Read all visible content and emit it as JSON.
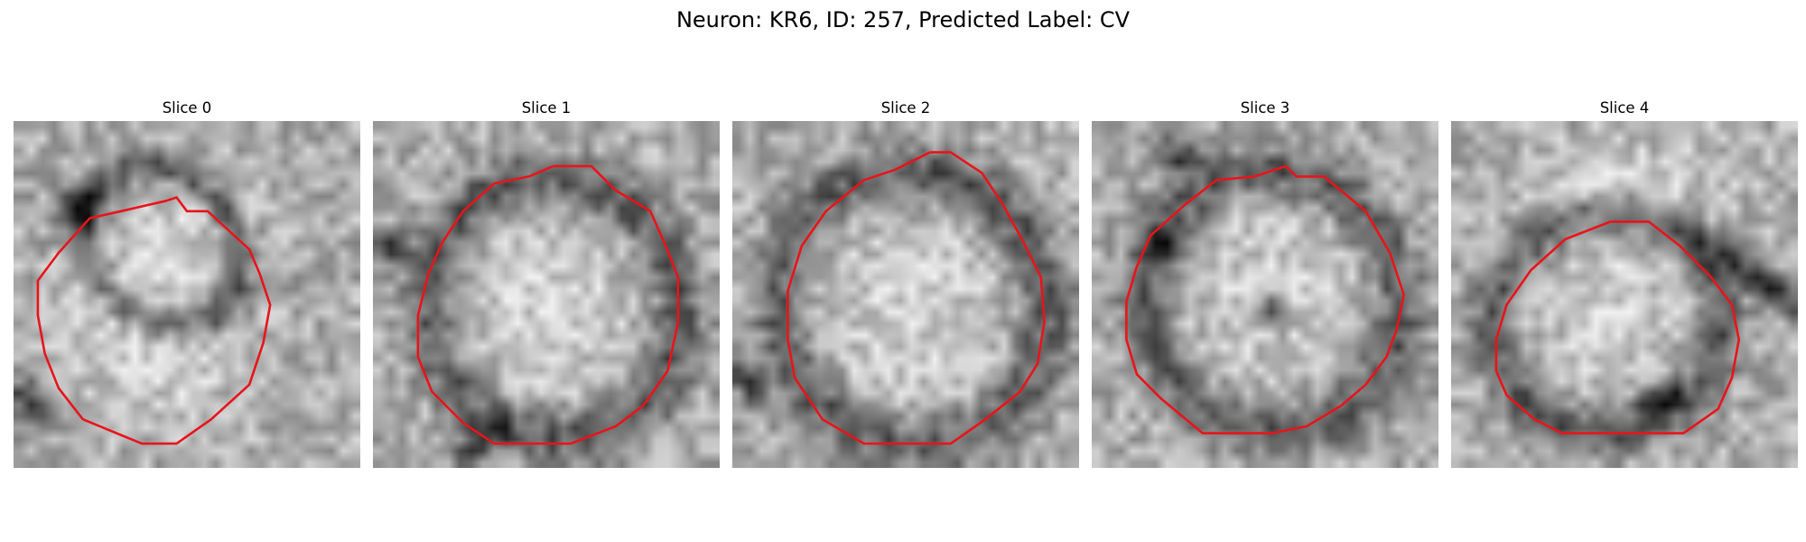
{
  "figure": {
    "title": "Neuron: KR6, ID: 257, Predicted Label: CV"
  },
  "colors": {
    "contour": "#e8141a",
    "background": "#ffffff",
    "text": "#000000"
  },
  "panels": [
    {
      "title": "Slice 0",
      "seed": 11,
      "contour": [
        [
          0.44,
          0.23
        ],
        [
          0.47,
          0.22
        ],
        [
          0.5,
          0.26
        ],
        [
          0.56,
          0.26
        ],
        [
          0.68,
          0.37
        ],
        [
          0.71,
          0.44
        ],
        [
          0.74,
          0.53
        ],
        [
          0.72,
          0.64
        ],
        [
          0.68,
          0.76
        ],
        [
          0.57,
          0.86
        ],
        [
          0.47,
          0.93
        ],
        [
          0.37,
          0.93
        ],
        [
          0.2,
          0.86
        ],
        [
          0.13,
          0.77
        ],
        [
          0.09,
          0.67
        ],
        [
          0.07,
          0.56
        ],
        [
          0.07,
          0.46
        ],
        [
          0.13,
          0.38
        ],
        [
          0.22,
          0.28
        ],
        [
          0.31,
          0.26
        ],
        [
          0.44,
          0.23
        ]
      ],
      "features": {
        "ring": [
          0.43,
          0.36,
          0.2,
          0.25,
          -40
        ],
        "blobs": [
          [
            0.43,
            0.36,
            0.18,
            0.22,
            45
          ],
          [
            0.4,
            0.68,
            0.28,
            0.2,
            40
          ]
        ],
        "dark": [
          [
            0.18,
            0.26,
            0.08,
            0.08,
            -40
          ],
          [
            0.05,
            0.82,
            0.06,
            0.1,
            -30
          ]
        ]
      }
    },
    {
      "title": "Slice 1",
      "seed": 23,
      "contour": [
        [
          0.52,
          0.13
        ],
        [
          0.63,
          0.13
        ],
        [
          0.7,
          0.2
        ],
        [
          0.8,
          0.26
        ],
        [
          0.84,
          0.35
        ],
        [
          0.88,
          0.45
        ],
        [
          0.88,
          0.58
        ],
        [
          0.85,
          0.72
        ],
        [
          0.78,
          0.82
        ],
        [
          0.7,
          0.88
        ],
        [
          0.57,
          0.93
        ],
        [
          0.35,
          0.93
        ],
        [
          0.26,
          0.87
        ],
        [
          0.17,
          0.78
        ],
        [
          0.13,
          0.68
        ],
        [
          0.13,
          0.56
        ],
        [
          0.16,
          0.44
        ],
        [
          0.2,
          0.35
        ],
        [
          0.26,
          0.26
        ],
        [
          0.35,
          0.18
        ],
        [
          0.45,
          0.16
        ],
        [
          0.52,
          0.13
        ]
      ],
      "features": {
        "ring": [
          0.52,
          0.54,
          0.36,
          0.38,
          -30
        ],
        "blobs": [
          [
            0.5,
            0.52,
            0.3,
            0.32,
            30
          ]
        ],
        "dark": [
          [
            0.04,
            0.35,
            0.05,
            0.08,
            -50
          ],
          [
            0.3,
            0.93,
            0.1,
            0.05,
            -35
          ]
        ]
      }
    },
    {
      "title": "Slice 2",
      "seed": 37,
      "contour": [
        [
          0.57,
          0.09
        ],
        [
          0.63,
          0.09
        ],
        [
          0.72,
          0.15
        ],
        [
          0.78,
          0.24
        ],
        [
          0.84,
          0.35
        ],
        [
          0.89,
          0.45
        ],
        [
          0.9,
          0.58
        ],
        [
          0.88,
          0.7
        ],
        [
          0.83,
          0.78
        ],
        [
          0.73,
          0.86
        ],
        [
          0.63,
          0.93
        ],
        [
          0.38,
          0.93
        ],
        [
          0.26,
          0.86
        ],
        [
          0.18,
          0.74
        ],
        [
          0.16,
          0.63
        ],
        [
          0.16,
          0.49
        ],
        [
          0.2,
          0.36
        ],
        [
          0.27,
          0.26
        ],
        [
          0.38,
          0.17
        ],
        [
          0.47,
          0.14
        ],
        [
          0.57,
          0.09
        ]
      ],
      "features": {
        "ring": [
          0.52,
          0.54,
          0.38,
          0.4,
          -30
        ],
        "blobs": [
          [
            0.5,
            0.55,
            0.33,
            0.33,
            35
          ]
        ],
        "dark": [
          [
            0.04,
            0.75,
            0.05,
            0.1,
            -40
          ]
        ]
      }
    },
    {
      "title": "Slice 3",
      "seed": 53,
      "contour": [
        [
          0.56,
          0.13
        ],
        [
          0.59,
          0.16
        ],
        [
          0.67,
          0.16
        ],
        [
          0.79,
          0.26
        ],
        [
          0.86,
          0.38
        ],
        [
          0.9,
          0.5
        ],
        [
          0.88,
          0.6
        ],
        [
          0.85,
          0.68
        ],
        [
          0.79,
          0.76
        ],
        [
          0.72,
          0.82
        ],
        [
          0.62,
          0.88
        ],
        [
          0.52,
          0.9
        ],
        [
          0.32,
          0.9
        ],
        [
          0.2,
          0.8
        ],
        [
          0.13,
          0.73
        ],
        [
          0.1,
          0.63
        ],
        [
          0.1,
          0.52
        ],
        [
          0.13,
          0.42
        ],
        [
          0.17,
          0.33
        ],
        [
          0.27,
          0.24
        ],
        [
          0.36,
          0.17
        ],
        [
          0.47,
          0.16
        ],
        [
          0.56,
          0.13
        ]
      ],
      "features": {
        "ring": [
          0.52,
          0.52,
          0.36,
          0.38,
          -30
        ],
        "blobs": [
          [
            0.52,
            0.5,
            0.28,
            0.32,
            30
          ]
        ],
        "dark": [
          [
            0.25,
            0.1,
            0.06,
            0.07,
            -60
          ],
          [
            0.2,
            0.36,
            0.05,
            0.06,
            -40
          ],
          [
            0.53,
            0.55,
            0.05,
            0.06,
            -25
          ]
        ]
      }
    },
    {
      "title": "Slice 4",
      "seed": 71,
      "contour": [
        [
          0.46,
          0.29
        ],
        [
          0.57,
          0.29
        ],
        [
          0.66,
          0.36
        ],
        [
          0.75,
          0.45
        ],
        [
          0.81,
          0.53
        ],
        [
          0.83,
          0.63
        ],
        [
          0.81,
          0.74
        ],
        [
          0.77,
          0.83
        ],
        [
          0.67,
          0.9
        ],
        [
          0.53,
          0.9
        ],
        [
          0.32,
          0.9
        ],
        [
          0.24,
          0.86
        ],
        [
          0.16,
          0.79
        ],
        [
          0.13,
          0.72
        ],
        [
          0.13,
          0.63
        ],
        [
          0.16,
          0.53
        ],
        [
          0.23,
          0.43
        ],
        [
          0.33,
          0.34
        ],
        [
          0.46,
          0.29
        ]
      ],
      "features": {
        "ring": [
          0.45,
          0.58,
          0.33,
          0.31,
          -20
        ],
        "blobs": [
          [
            0.45,
            0.55,
            0.25,
            0.25,
            20
          ],
          [
            0.5,
            0.2,
            0.35,
            0.15,
            0
          ]
        ],
        "dark": [
          [
            0.88,
            0.45,
            0.05,
            0.3,
            -55
          ],
          [
            0.6,
            0.8,
            0.08,
            0.05,
            -30
          ]
        ]
      }
    }
  ]
}
